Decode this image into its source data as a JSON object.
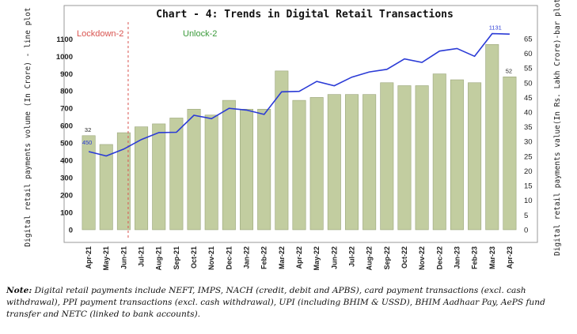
{
  "chart_data": {
    "type": "bar+line",
    "title": "Chart - 4: Trends in Digital Retail Transactions",
    "ylabel_left": "Digital retail payments volume (In Crore) - line plot",
    "ylabel_right": "Digital retail payments value(In Rs. Lakh Crore)-bar plot",
    "left_axis": {
      "min": 0,
      "max": 1100,
      "ticks": [
        0,
        100,
        200,
        300,
        400,
        500,
        600,
        700,
        800,
        900,
        1000,
        1100
      ],
      "range": [
        -60,
        1170
      ]
    },
    "right_axis": {
      "min": 0,
      "max": 65,
      "ticks": [
        0,
        5,
        10,
        15,
        20,
        25,
        30,
        35,
        40,
        45,
        50,
        55,
        60,
        65
      ],
      "range": [
        -3.5,
        69
      ]
    },
    "categories": [
      "Apr-21",
      "May-21",
      "Jun-21",
      "Jul-21",
      "Aug-21",
      "Sep-21",
      "Oct-21",
      "Nov-21",
      "Dec-21",
      "Jan-22",
      "Feb-22",
      "Mar-22",
      "Apr-22",
      "May-22",
      "Jun-22",
      "Jul-22",
      "Aug-22",
      "Sep-22",
      "Oct-22",
      "Nov-22",
      "Dec-22",
      "Jan-23",
      "Feb-23",
      "Mar-23",
      "Apr-23"
    ],
    "series": [
      {
        "kind": "bar",
        "axis": "right",
        "color": "#c2cda0",
        "edge": "#9aa57a",
        "values": [
          32,
          29,
          33,
          35,
          36,
          38,
          41,
          39,
          44,
          41,
          41,
          54,
          44,
          45,
          46,
          46,
          46,
          50,
          49,
          49,
          53,
          51,
          50,
          63,
          52
        ]
      },
      {
        "kind": "line",
        "axis": "left",
        "color": "#2b3bd6",
        "values": [
          450,
          425,
          465,
          520,
          560,
          562,
          660,
          640,
          700,
          690,
          665,
          795,
          798,
          855,
          830,
          880,
          910,
          925,
          985,
          965,
          1030,
          1045,
          1000,
          1131,
          1128
        ]
      }
    ],
    "data_labels": [
      {
        "series": "bar",
        "index": 0,
        "text": "32"
      },
      {
        "series": "line",
        "index": 0,
        "text": "450"
      },
      {
        "series": "line",
        "index": 23,
        "text": "1131"
      },
      {
        "series": "bar",
        "index": 24,
        "text": "52"
      }
    ],
    "annotations": [
      {
        "text": "Lockdown-2",
        "color": "#d9534f",
        "category": "Jun-21",
        "marker": "dashed-vertical-line"
      },
      {
        "text": "Unlock-2",
        "color": "#3a9a3a"
      }
    ],
    "grid": false,
    "legend": "none"
  },
  "note": {
    "label": "Note:",
    "text": " Digital retail payments include NEFT, IMPS, NACH (credit, debit and APBS), card payment transactions (excl. cash withdrawal), PPI payment transactions (excl. cash withdrawal), UPI (including BHIM & USSD), BHIM Aadhaar Pay, AePS fund transfer and NETC (linked to bank accounts)."
  }
}
